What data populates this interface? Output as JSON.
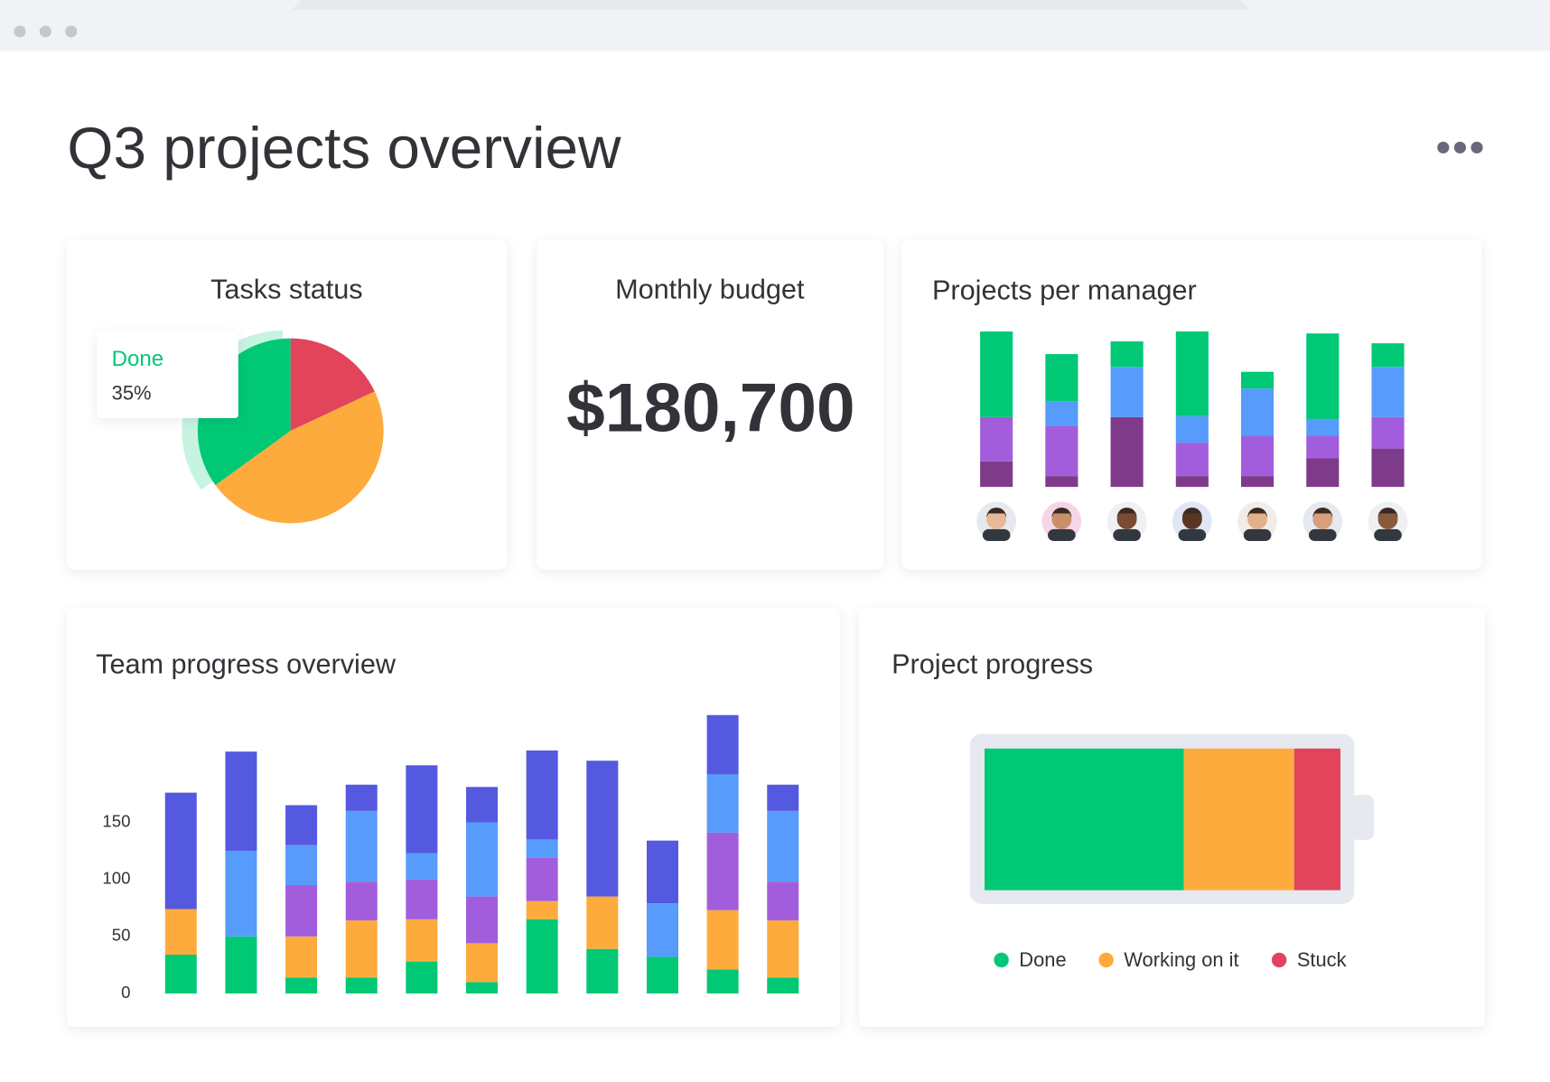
{
  "title": "Q3 projects overview",
  "budget": {
    "title": "Monthly budget",
    "value": "$180,700"
  },
  "chart_data": [
    {
      "type": "pie",
      "title": "Tasks status",
      "categories": [
        "Done",
        null,
        null
      ],
      "values": [
        35,
        18,
        47
      ],
      "value_labels": [
        "35%",
        null,
        null
      ],
      "colors": [
        "#00c875",
        "#e2445c",
        "#fdab3d"
      ]
    },
    {
      "type": "stacked_bar",
      "title": "Projects per manager",
      "series": [
        {
          "color": "#7e3b8a",
          "values": [
            26,
            11,
            71,
            11,
            11,
            29,
            39
          ]
        },
        {
          "color": "#a25ddc",
          "values": [
            45,
            51,
            0,
            34,
            41,
            23,
            32
          ]
        },
        {
          "color": "#579bfc",
          "values": [
            0,
            25,
            51,
            27,
            48,
            17,
            51
          ]
        },
        {
          "color": "#00c875",
          "values": [
            87,
            48,
            26,
            86,
            17,
            87,
            24
          ]
        }
      ]
    },
    {
      "type": "stacked_bar",
      "title": "Team progress overview",
      "ylim": [
        0,
        250
      ],
      "yticks": [
        0,
        50,
        100,
        150
      ],
      "series": [
        {
          "color": "#00c875",
          "values": [
            34,
            50,
            14,
            14,
            28,
            10,
            65,
            39,
            32,
            21,
            14
          ]
        },
        {
          "color": "#fdab3d",
          "values": [
            40,
            0,
            36,
            50,
            37,
            34,
            16,
            46,
            0,
            52,
            50
          ]
        },
        {
          "color": "#a25ddc",
          "values": [
            0,
            0,
            45,
            34,
            35,
            41,
            38,
            0,
            0,
            68,
            34
          ]
        },
        {
          "color": "#579bfc",
          "values": [
            0,
            75,
            35,
            62,
            23,
            65,
            16,
            0,
            47,
            51,
            62
          ]
        },
        {
          "color": "#5559df",
          "values": [
            102,
            87,
            35,
            23,
            77,
            31,
            78,
            119,
            55,
            52,
            23
          ]
        }
      ]
    },
    {
      "type": "progress",
      "title": "Project progress",
      "categories": [
        "Done",
        "Working on it",
        "Stuck"
      ],
      "values": [
        56,
        31,
        13
      ],
      "colors": [
        "#00c875",
        "#fdab3d",
        "#e2445c"
      ],
      "xlim": [
        0,
        100
      ]
    }
  ]
}
